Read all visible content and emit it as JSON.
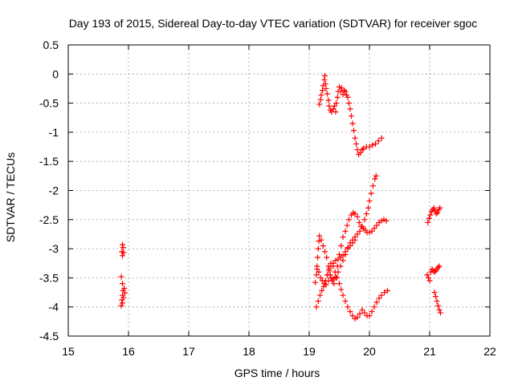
{
  "chart_data": {
    "type": "scatter",
    "title": "Day 193 of 2015, Sidereal Day-to-day VTEC variation (SDTVAR) for receiver sgoc",
    "xlabel": "GPS time / hours",
    "ylabel": "SDTVAR / TECUs",
    "xlim": [
      15,
      22
    ],
    "ylim": [
      -4.5,
      0.5
    ],
    "xticks": [
      "15",
      "16",
      "17",
      "18",
      "19",
      "20",
      "21",
      "22"
    ],
    "yticks": [
      "0.5",
      "0",
      "-0.5",
      "-1",
      "-1.5",
      "-2",
      "-2.5",
      "-3",
      "-3.5",
      "-4",
      "-4.5"
    ],
    "grid": true,
    "marker": "+",
    "color": "#ff0000",
    "series": [
      {
        "points": [
          [
            15.9,
            -2.93
          ],
          [
            15.91,
            -2.98
          ],
          [
            15.89,
            -3.05
          ],
          [
            15.92,
            -3.07
          ],
          [
            15.9,
            -3.12
          ],
          [
            15.88,
            -3.48
          ],
          [
            15.9,
            -3.6
          ],
          [
            15.93,
            -3.68
          ],
          [
            15.91,
            -3.72
          ],
          [
            15.94,
            -3.76
          ],
          [
            15.9,
            -3.8
          ],
          [
            15.92,
            -3.84
          ],
          [
            15.89,
            -3.88
          ],
          [
            15.9,
            -3.93
          ],
          [
            15.88,
            -3.98
          ],
          [
            19.17,
            -0.52
          ],
          [
            19.19,
            -0.44
          ],
          [
            19.2,
            -0.36
          ],
          [
            19.22,
            -0.28
          ],
          [
            19.23,
            -0.2
          ],
          [
            19.25,
            -0.1
          ],
          [
            19.26,
            -0.03
          ],
          [
            19.27,
            -0.17
          ],
          [
            19.28,
            -0.25
          ],
          [
            19.3,
            -0.34
          ],
          [
            19.32,
            -0.45
          ],
          [
            19.33,
            -0.55
          ],
          [
            19.35,
            -0.62
          ],
          [
            19.37,
            -0.65
          ],
          [
            19.4,
            -0.6
          ],
          [
            19.42,
            -0.55
          ],
          [
            19.44,
            -0.65
          ],
          [
            19.45,
            -0.5
          ],
          [
            19.47,
            -0.4
          ],
          [
            19.48,
            -0.3
          ],
          [
            19.5,
            -0.22
          ],
          [
            19.52,
            -0.3
          ],
          [
            19.54,
            -0.24
          ],
          [
            19.56,
            -0.35
          ],
          [
            19.58,
            -0.28
          ],
          [
            19.6,
            -0.3
          ],
          [
            19.62,
            -0.36
          ],
          [
            19.64,
            -0.4
          ],
          [
            19.66,
            -0.5
          ],
          [
            19.68,
            -0.6
          ],
          [
            19.7,
            -0.72
          ],
          [
            19.72,
            -0.85
          ],
          [
            19.74,
            -0.97
          ],
          [
            19.76,
            -1.1
          ],
          [
            19.78,
            -1.2
          ],
          [
            19.8,
            -1.3
          ],
          [
            19.82,
            -1.38
          ],
          [
            19.85,
            -1.35
          ],
          [
            19.88,
            -1.3
          ],
          [
            19.9,
            -1.28
          ],
          [
            19.95,
            -1.25
          ],
          [
            20.0,
            -1.25
          ],
          [
            20.05,
            -1.22
          ],
          [
            20.1,
            -1.2
          ],
          [
            20.15,
            -1.15
          ],
          [
            20.2,
            -1.1
          ],
          [
            19.1,
            -3.58
          ],
          [
            19.12,
            -3.45
          ],
          [
            19.13,
            -3.3
          ],
          [
            19.14,
            -3.15
          ],
          [
            19.15,
            -3.0
          ],
          [
            19.16,
            -2.87
          ],
          [
            19.17,
            -2.78
          ],
          [
            19.2,
            -2.85
          ],
          [
            19.23,
            -2.95
          ],
          [
            19.26,
            -3.05
          ],
          [
            19.29,
            -3.15
          ],
          [
            19.32,
            -3.3
          ],
          [
            19.35,
            -3.45
          ],
          [
            19.38,
            -3.55
          ],
          [
            19.41,
            -3.6
          ],
          [
            19.44,
            -3.5
          ],
          [
            19.47,
            -3.3
          ],
          [
            19.5,
            -3.1
          ],
          [
            19.53,
            -2.95
          ],
          [
            19.56,
            -2.8
          ],
          [
            19.6,
            -2.7
          ],
          [
            19.63,
            -2.6
          ],
          [
            19.66,
            -2.5
          ],
          [
            19.7,
            -2.42
          ],
          [
            19.73,
            -2.38
          ],
          [
            19.76,
            -2.4
          ],
          [
            19.8,
            -2.45
          ],
          [
            19.83,
            -2.55
          ],
          [
            19.86,
            -2.62
          ],
          [
            19.9,
            -2.65
          ],
          [
            19.93,
            -2.68
          ],
          [
            19.96,
            -2.72
          ],
          [
            20.0,
            -2.72
          ],
          [
            20.04,
            -2.7
          ],
          [
            20.08,
            -2.65
          ],
          [
            20.12,
            -2.6
          ],
          [
            20.16,
            -2.55
          ],
          [
            20.2,
            -2.52
          ],
          [
            20.24,
            -2.5
          ],
          [
            20.28,
            -2.52
          ],
          [
            19.12,
            -4.0
          ],
          [
            19.15,
            -3.9
          ],
          [
            19.18,
            -3.8
          ],
          [
            19.21,
            -3.72
          ],
          [
            19.24,
            -3.65
          ],
          [
            19.27,
            -3.55
          ],
          [
            19.3,
            -3.45
          ],
          [
            19.33,
            -3.35
          ],
          [
            19.36,
            -3.25
          ],
          [
            19.4,
            -3.3
          ],
          [
            19.43,
            -3.4
          ],
          [
            19.46,
            -3.5
          ],
          [
            19.5,
            -3.6
          ],
          [
            19.53,
            -3.7
          ],
          [
            19.56,
            -3.8
          ],
          [
            19.6,
            -3.9
          ],
          [
            19.64,
            -4.0
          ],
          [
            19.68,
            -4.08
          ],
          [
            19.72,
            -4.15
          ],
          [
            19.76,
            -4.2
          ],
          [
            19.8,
            -4.18
          ],
          [
            19.84,
            -4.12
          ],
          [
            19.88,
            -4.05
          ],
          [
            19.92,
            -4.1
          ],
          [
            19.96,
            -4.15
          ],
          [
            20.0,
            -4.15
          ],
          [
            20.04,
            -4.08
          ],
          [
            20.08,
            -4.0
          ],
          [
            20.12,
            -3.92
          ],
          [
            20.16,
            -3.85
          ],
          [
            20.2,
            -3.8
          ],
          [
            20.25,
            -3.75
          ],
          [
            20.3,
            -3.72
          ],
          [
            19.3,
            -3.45
          ],
          [
            19.33,
            -3.38
          ],
          [
            19.36,
            -3.3
          ],
          [
            19.4,
            -3.25
          ],
          [
            19.44,
            -3.2
          ],
          [
            19.48,
            -3.18
          ],
          [
            19.52,
            -3.15
          ],
          [
            19.56,
            -3.12
          ],
          [
            19.6,
            -3.05
          ],
          [
            19.64,
            -2.98
          ],
          [
            19.68,
            -2.9
          ],
          [
            19.72,
            -2.85
          ],
          [
            19.76,
            -2.8
          ],
          [
            19.8,
            -2.75
          ],
          [
            19.84,
            -2.7
          ],
          [
            19.88,
            -2.62
          ],
          [
            19.92,
            -2.5
          ],
          [
            19.95,
            -2.4
          ],
          [
            19.98,
            -2.3
          ],
          [
            20.0,
            -2.18
          ],
          [
            20.03,
            -2.05
          ],
          [
            20.06,
            -1.92
          ],
          [
            20.09,
            -1.8
          ],
          [
            20.11,
            -1.75
          ],
          [
            19.13,
            -3.35
          ],
          [
            19.16,
            -3.4
          ],
          [
            19.19,
            -3.5
          ],
          [
            19.22,
            -3.55
          ],
          [
            19.25,
            -3.6
          ],
          [
            19.28,
            -3.62
          ],
          [
            19.32,
            -3.55
          ],
          [
            19.36,
            -3.5
          ],
          [
            19.4,
            -3.52
          ],
          [
            19.44,
            -3.48
          ],
          [
            19.48,
            -3.4
          ],
          [
            19.52,
            -3.3
          ],
          [
            19.56,
            -3.2
          ],
          [
            19.6,
            -3.1
          ],
          [
            19.64,
            -3.0
          ],
          [
            19.68,
            -2.95
          ],
          [
            19.72,
            -2.9
          ],
          [
            19.76,
            -2.85
          ],
          [
            20.97,
            -2.55
          ],
          [
            20.99,
            -2.48
          ],
          [
            21.01,
            -2.42
          ],
          [
            21.03,
            -2.36
          ],
          [
            21.05,
            -2.33
          ],
          [
            21.07,
            -2.3
          ],
          [
            21.09,
            -2.35
          ],
          [
            21.11,
            -2.4
          ],
          [
            21.13,
            -2.38
          ],
          [
            21.15,
            -2.33
          ],
          [
            21.17,
            -2.3
          ],
          [
            20.96,
            -3.45
          ],
          [
            20.98,
            -3.5
          ],
          [
            21.0,
            -3.55
          ],
          [
            21.02,
            -3.4
          ],
          [
            21.04,
            -3.35
          ],
          [
            21.06,
            -3.38
          ],
          [
            21.08,
            -3.4
          ],
          [
            21.1,
            -3.38
          ],
          [
            21.12,
            -3.35
          ],
          [
            21.14,
            -3.32
          ],
          [
            21.16,
            -3.3
          ],
          [
            21.08,
            -3.75
          ],
          [
            21.1,
            -3.82
          ],
          [
            21.12,
            -3.9
          ],
          [
            21.14,
            -3.98
          ],
          [
            21.16,
            -4.05
          ],
          [
            21.18,
            -4.1
          ]
        ]
      }
    ]
  }
}
